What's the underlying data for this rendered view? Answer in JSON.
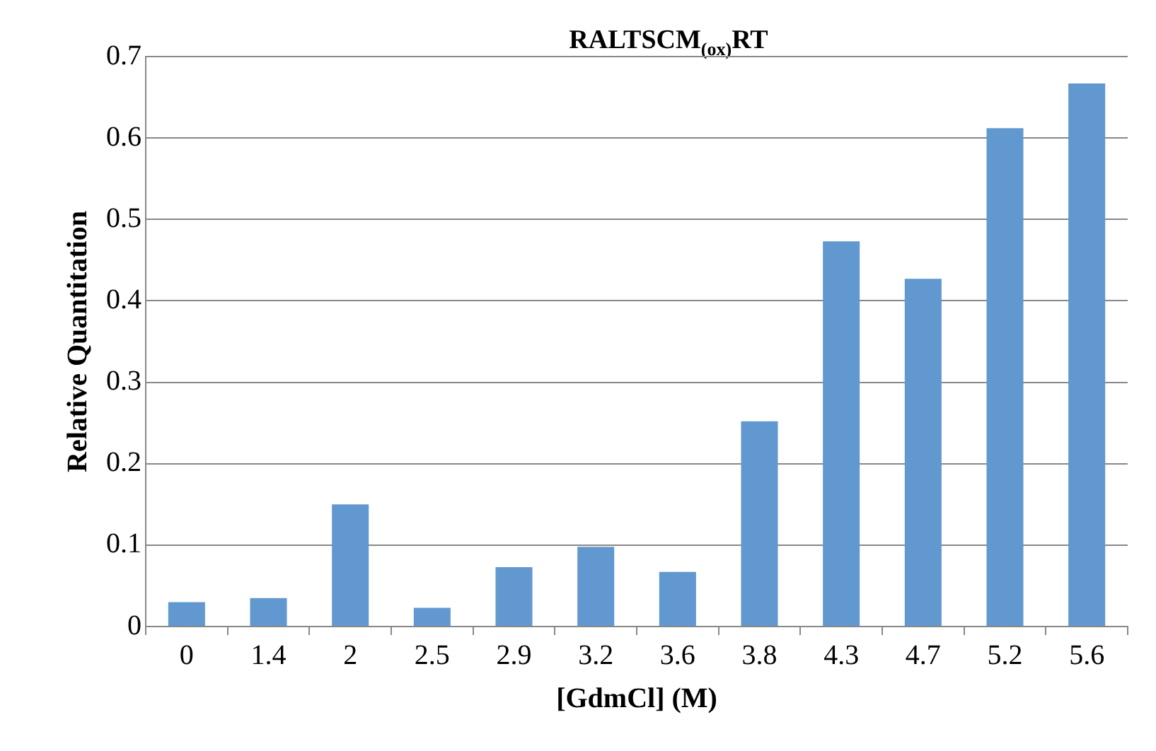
{
  "chart_data": {
    "type": "bar",
    "title": "RALTSCM$_{(ox)}$RT",
    "xlabel": "[GdmCl] (M)",
    "ylabel": "Relative Quantitation",
    "categories": [
      "0",
      "1.4",
      "2",
      "2.5",
      "2.9",
      "3.2",
      "3.6",
      "3.8",
      "4.3",
      "4.7",
      "5.2",
      "5.6"
    ],
    "values": [
      0.03,
      0.035,
      0.15,
      0.023,
      0.073,
      0.098,
      0.067,
      0.252,
      0.473,
      0.427,
      0.612,
      0.667
    ],
    "color": "#6198cf",
    "ylim": [
      0,
      0.7
    ],
    "yticks": [
      0,
      0.1,
      0.2,
      0.3,
      0.4,
      0.5,
      0.6,
      0.7
    ],
    "grid": "y",
    "legend": false
  }
}
